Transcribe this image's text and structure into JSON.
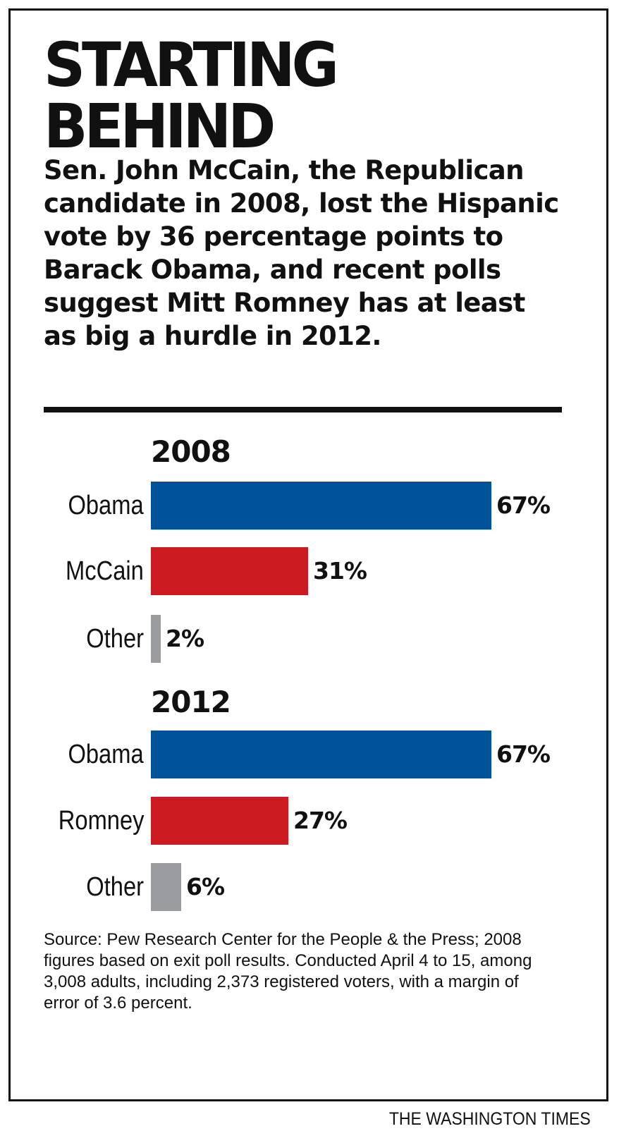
{
  "title_lines": [
    "STARTING",
    "BEHIND"
  ],
  "subtitle": "Sen. John McCain, the Republican candidate in 2008, lost the Hispanic vote by 36 percentage points to Barack Obama, and recent polls suggest Mitt Romney has at least as big a hurdle in 2012.",
  "source": "Source: Pew Research Center for the People & the Press; 2008 figures based on exit poll results. Conducted April 4 to 15, among 3,008 adults, including 2,373 registered voters, with a margin of error of 3.6 percent.",
  "credit": "THE WASHINGTON TIMES",
  "colors": {
    "democrat": "#00539b",
    "republican": "#cc1a21",
    "other": "#9b9ca0"
  },
  "chart_data": [
    {
      "type": "bar",
      "orientation": "horizontal",
      "title": "2008",
      "categories": [
        "Obama",
        "McCain",
        "Other"
      ],
      "values": [
        67,
        31,
        2
      ],
      "value_labels": [
        "67%",
        "31%",
        "2%"
      ],
      "xlim": [
        0,
        67
      ]
    },
    {
      "type": "bar",
      "orientation": "horizontal",
      "title": "2012",
      "categories": [
        "Obama",
        "Romney",
        "Other"
      ],
      "values": [
        67,
        27,
        6
      ],
      "value_labels": [
        "67%",
        "27%",
        "6%"
      ],
      "xlim": [
        0,
        67
      ]
    }
  ]
}
